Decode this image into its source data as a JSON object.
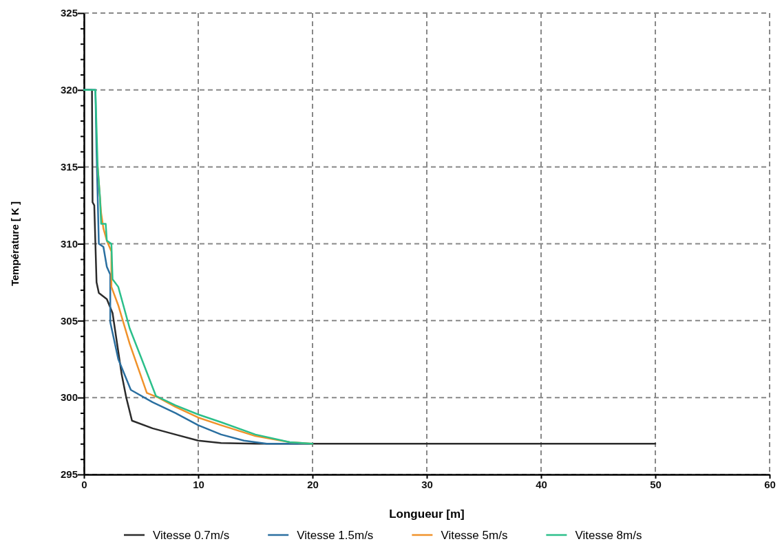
{
  "chart_data": {
    "type": "line",
    "xlabel": "Longueur [m]",
    "ylabel": "Température [ K ]",
    "xlim": [
      0,
      60
    ],
    "ylim": [
      295,
      325
    ],
    "xticks": [
      0,
      10,
      20,
      30,
      40,
      50,
      60
    ],
    "yticks": [
      295,
      {
        "value": 296,
        "label": null
      },
      {
        "value": 297,
        "label": null
      },
      {
        "value": 298,
        "label": null
      },
      {
        "value": 299,
        "label": null
      },
      300,
      {
        "value": 301,
        "label": null
      },
      {
        "value": 302,
        "label": null
      },
      {
        "value": 303,
        "label": null
      },
      {
        "value": 304,
        "label": null
      },
      305,
      {
        "value": 306,
        "label": null
      },
      {
        "value": 307,
        "label": null
      },
      {
        "value": 308,
        "label": null
      },
      {
        "value": 309,
        "label": null
      },
      310,
      {
        "value": 311,
        "label": null
      },
      {
        "value": 312,
        "label": null
      },
      {
        "value": 313,
        "label": null
      },
      {
        "value": 314,
        "label": null
      },
      315,
      {
        "value": 316,
        "label": null
      },
      {
        "value": 317,
        "label": null
      },
      {
        "value": 318,
        "label": null
      },
      {
        "value": 319,
        "label": null
      },
      320,
      {
        "value": 321,
        "label": null
      },
      {
        "value": 322,
        "label": null
      },
      {
        "value": 323,
        "label": null
      },
      {
        "value": 324,
        "label": null
      },
      325
    ],
    "grid": true,
    "legend": "bottom",
    "line_style": "solid",
    "marker": "none",
    "series": [
      {
        "name": "Vitesse 0.7m/s",
        "color": "#2b2b2b",
        "x": [
          0,
          0.7,
          0.75,
          0.9,
          1.1,
          1.3,
          2,
          2.5,
          2.8,
          3.3,
          3.7,
          4.2,
          6,
          8,
          10,
          12,
          15,
          20,
          50
        ],
        "values": [
          320,
          320,
          312.7,
          312.5,
          307.5,
          306.8,
          306.4,
          305.5,
          304,
          301.5,
          300,
          298.5,
          298,
          297.6,
          297.2,
          297.05,
          297,
          297,
          297
        ]
      },
      {
        "name": "Vitesse 1.5m/s",
        "color": "#2a6fa0",
        "x": [
          0,
          1.0,
          1.1,
          1.3,
          1.7,
          2,
          2.3,
          2.3,
          3,
          4.1,
          6,
          8,
          10,
          12,
          14,
          16,
          20
        ],
        "values": [
          320,
          320,
          316,
          310,
          309.8,
          308.5,
          308,
          304.9,
          302.5,
          300.5,
          299.7,
          299,
          298.2,
          297.6,
          297.2,
          297,
          297
        ]
      },
      {
        "name": "Vitesse 5m/s",
        "color": "#f0922a",
        "x": [
          1.2,
          1.5,
          1.7,
          2,
          2.4,
          2.4,
          3,
          4,
          5.5,
          6.5,
          8,
          10,
          12,
          15,
          18,
          20
        ],
        "values": [
          315,
          312,
          311,
          310.2,
          309.5,
          307.2,
          306,
          303.5,
          300.3,
          300,
          299.4,
          298.7,
          298.2,
          297.5,
          297.1,
          297
        ]
      },
      {
        "name": "Vitesse 8m/s",
        "color": "#2bbf8a",
        "x": [
          0,
          1.0,
          1.2,
          1.4,
          1.5,
          1.9,
          2.0,
          2.4,
          2.5,
          3,
          4,
          5,
          6.3,
          8,
          10,
          12,
          15,
          18,
          20
        ],
        "values": [
          320,
          320,
          315,
          313,
          311.3,
          311.3,
          310.2,
          310,
          307.7,
          307.2,
          304.5,
          302.6,
          300.1,
          299.5,
          298.9,
          298.4,
          297.6,
          297.1,
          297
        ]
      }
    ]
  }
}
